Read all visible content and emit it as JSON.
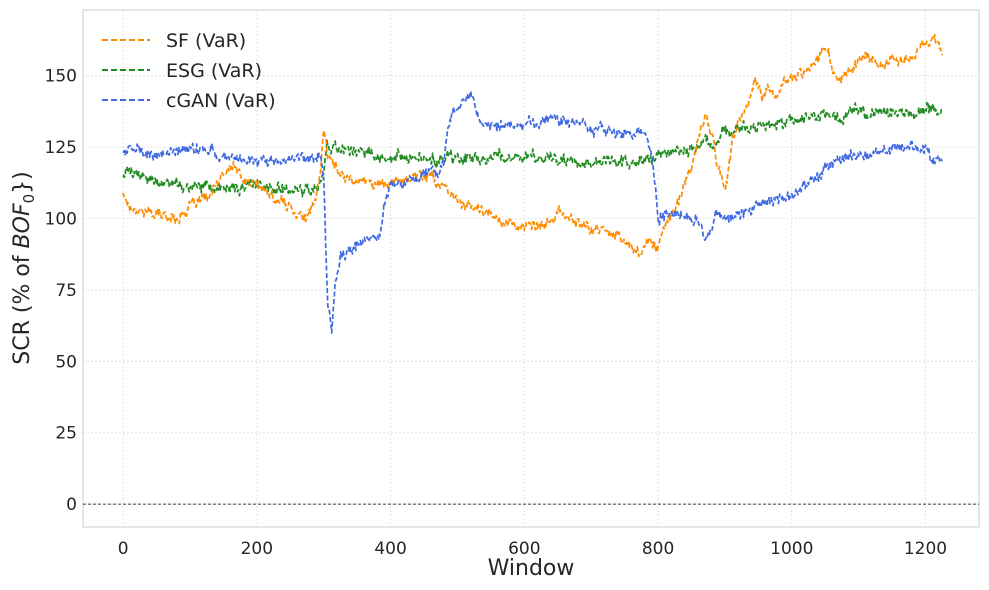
{
  "chart_data": {
    "type": "line",
    "title": "",
    "xlabel": "Window",
    "ylabel": "SCR (% of BOF0})",
    "ylabel_parts": {
      "pre": "SCR (% of ",
      "var": "BOF",
      "sub": "0",
      "post": "})"
    },
    "xlim": [
      -60,
      1280
    ],
    "ylim": [
      -8,
      173
    ],
    "xticks": [
      0,
      200,
      400,
      600,
      800,
      1000,
      1200
    ],
    "yticks": [
      0,
      25,
      50,
      75,
      100,
      125,
      150
    ],
    "grid": true,
    "legend": "top-left",
    "hline": {
      "y": 0,
      "style": "dashed",
      "color": "#000000"
    },
    "series": [
      {
        "name": "SF (VaR)",
        "color": "#ff8c00",
        "style": "dashed",
        "anchors": [
          [
            0,
            109
          ],
          [
            10,
            104
          ],
          [
            40,
            102
          ],
          [
            80,
            100
          ],
          [
            100,
            104
          ],
          [
            130,
            108
          ],
          [
            150,
            115
          ],
          [
            165,
            119
          ],
          [
            180,
            113
          ],
          [
            200,
            112
          ],
          [
            220,
            108
          ],
          [
            250,
            104
          ],
          [
            275,
            100
          ],
          [
            285,
            104
          ],
          [
            295,
            116
          ],
          [
            300,
            132
          ],
          [
            305,
            124
          ],
          [
            310,
            120
          ],
          [
            330,
            115
          ],
          [
            360,
            113
          ],
          [
            400,
            112
          ],
          [
            430,
            115
          ],
          [
            460,
            115
          ],
          [
            490,
            108
          ],
          [
            520,
            104
          ],
          [
            560,
            100
          ],
          [
            600,
            97
          ],
          [
            630,
            97
          ],
          [
            650,
            102
          ],
          [
            670,
            100
          ],
          [
            700,
            96
          ],
          [
            730,
            96
          ],
          [
            760,
            90
          ],
          [
            775,
            88
          ],
          [
            790,
            93
          ],
          [
            800,
            90
          ],
          [
            810,
            98
          ],
          [
            830,
            105
          ],
          [
            850,
            118
          ],
          [
            865,
            132
          ],
          [
            870,
            136
          ],
          [
            880,
            130
          ],
          [
            890,
            118
          ],
          [
            900,
            110
          ],
          [
            912,
            128
          ],
          [
            920,
            133
          ],
          [
            935,
            140
          ],
          [
            945,
            150
          ],
          [
            955,
            142
          ],
          [
            965,
            146
          ],
          [
            980,
            143
          ],
          [
            990,
            148
          ],
          [
            1020,
            152
          ],
          [
            1040,
            157
          ],
          [
            1055,
            160
          ],
          [
            1062,
            150
          ],
          [
            1070,
            147
          ],
          [
            1090,
            153
          ],
          [
            1110,
            158
          ],
          [
            1130,
            153
          ],
          [
            1150,
            157
          ],
          [
            1170,
            155
          ],
          [
            1190,
            159
          ],
          [
            1205,
            162
          ],
          [
            1215,
            163
          ],
          [
            1225,
            158
          ]
        ]
      },
      {
        "name": "ESG (VaR)",
        "color": "#228b22",
        "style": "dashed",
        "anchors": [
          [
            0,
            116
          ],
          [
            30,
            115
          ],
          [
            60,
            112
          ],
          [
            100,
            111
          ],
          [
            150,
            110
          ],
          [
            200,
            112
          ],
          [
            250,
            109
          ],
          [
            290,
            110
          ],
          [
            300,
            116
          ],
          [
            305,
            126
          ],
          [
            320,
            124
          ],
          [
            350,
            123
          ],
          [
            400,
            122
          ],
          [
            450,
            121
          ],
          [
            500,
            121
          ],
          [
            550,
            121
          ],
          [
            600,
            122
          ],
          [
            650,
            120
          ],
          [
            700,
            119
          ],
          [
            750,
            120
          ],
          [
            800,
            121
          ],
          [
            830,
            123
          ],
          [
            860,
            125
          ],
          [
            900,
            130
          ],
          [
            950,
            132
          ],
          [
            1000,
            134
          ],
          [
            1050,
            136
          ],
          [
            1100,
            137
          ],
          [
            1150,
            137
          ],
          [
            1200,
            138
          ],
          [
            1225,
            137
          ]
        ]
      },
      {
        "name": "cGAN (VaR)",
        "color": "#4169e1",
        "style": "dashed",
        "anchors": [
          [
            0,
            124
          ],
          [
            50,
            122
          ],
          [
            100,
            125
          ],
          [
            150,
            123
          ],
          [
            180,
            120
          ],
          [
            220,
            120
          ],
          [
            270,
            122
          ],
          [
            295,
            122
          ],
          [
            300,
            113
          ],
          [
            303,
            90
          ],
          [
            306,
            70
          ],
          [
            312,
            60
          ],
          [
            318,
            78
          ],
          [
            325,
            87
          ],
          [
            345,
            90
          ],
          [
            365,
            92
          ],
          [
            385,
            96
          ],
          [
            390,
            105
          ],
          [
            400,
            112
          ],
          [
            420,
            113
          ],
          [
            440,
            114
          ],
          [
            460,
            118
          ],
          [
            470,
            117
          ],
          [
            480,
            118
          ],
          [
            485,
            130
          ],
          [
            495,
            137
          ],
          [
            505,
            140
          ],
          [
            520,
            142
          ],
          [
            535,
            135
          ],
          [
            550,
            132
          ],
          [
            570,
            132
          ],
          [
            600,
            133
          ],
          [
            640,
            135
          ],
          [
            680,
            133
          ],
          [
            720,
            131
          ],
          [
            760,
            130
          ],
          [
            780,
            130
          ],
          [
            792,
            120
          ],
          [
            800,
            101
          ],
          [
            820,
            102
          ],
          [
            850,
            100
          ],
          [
            865,
            98
          ],
          [
            870,
            91
          ],
          [
            885,
            100
          ],
          [
            900,
            101
          ],
          [
            925,
            102
          ],
          [
            950,
            105
          ],
          [
            1000,
            108
          ],
          [
            1025,
            113
          ],
          [
            1040,
            114
          ],
          [
            1060,
            120
          ],
          [
            1100,
            122
          ],
          [
            1150,
            124
          ],
          [
            1180,
            124
          ],
          [
            1200,
            125
          ],
          [
            1210,
            120
          ],
          [
            1225,
            121
          ]
        ]
      }
    ]
  }
}
